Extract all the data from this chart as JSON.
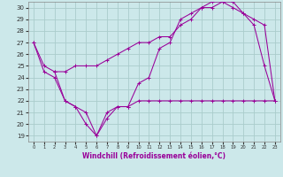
{
  "xlabel": "Windchill (Refroidissement éolien,°C)",
  "background_color": "#cce8ea",
  "grid_color": "#aacccc",
  "line_color": "#990099",
  "xlim": [
    -0.5,
    23.5
  ],
  "ylim": [
    18.5,
    30.5
  ],
  "xticks": [
    0,
    1,
    2,
    3,
    4,
    5,
    6,
    7,
    8,
    9,
    10,
    11,
    12,
    13,
    14,
    15,
    16,
    17,
    18,
    19,
    20,
    21,
    22,
    23
  ],
  "yticks": [
    19,
    20,
    21,
    22,
    23,
    24,
    25,
    26,
    27,
    28,
    29,
    30
  ],
  "series1_x": [
    0,
    1,
    2,
    3,
    4,
    5,
    6,
    7,
    8,
    9,
    10,
    11,
    12,
    13,
    14,
    15,
    16,
    17,
    18,
    19,
    20,
    21,
    22,
    23
  ],
  "series1_y": [
    27.0,
    25.0,
    24.5,
    24.5,
    25.0,
    25.0,
    25.0,
    25.5,
    26.0,
    26.5,
    27.0,
    27.0,
    27.5,
    27.5,
    28.5,
    29.0,
    30.0,
    30.5,
    30.5,
    30.5,
    29.5,
    28.5,
    25.0,
    22.0
  ],
  "series2_x": [
    0,
    1,
    2,
    3,
    4,
    5,
    6,
    7,
    8,
    9,
    10,
    11,
    12,
    13,
    14,
    15,
    16,
    17,
    18,
    19,
    20,
    21,
    22,
    23
  ],
  "series2_y": [
    27.0,
    24.5,
    24.0,
    22.0,
    21.5,
    20.0,
    19.0,
    20.5,
    21.5,
    21.5,
    22.0,
    22.0,
    22.0,
    22.0,
    22.0,
    22.0,
    22.0,
    22.0,
    22.0,
    22.0,
    22.0,
    22.0,
    22.0,
    22.0
  ],
  "series3_x": [
    2,
    3,
    4,
    5,
    6,
    7,
    8,
    9,
    10,
    11,
    12,
    13,
    14,
    15,
    16,
    17,
    18,
    19,
    20,
    21,
    22,
    23
  ],
  "series3_y": [
    24.5,
    22.0,
    21.5,
    21.0,
    19.0,
    21.0,
    21.5,
    21.5,
    23.5,
    24.0,
    26.5,
    27.0,
    29.0,
    29.5,
    30.0,
    30.0,
    30.5,
    30.0,
    29.5,
    29.0,
    28.5,
    22.0
  ]
}
